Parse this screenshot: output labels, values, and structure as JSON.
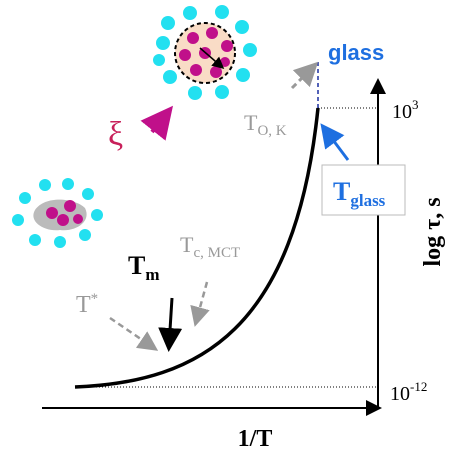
{
  "axes": {
    "x_label": "1/T",
    "y_label": "log τ, s",
    "y_top": {
      "base": "10",
      "exp": "3"
    },
    "y_bottom": {
      "base": "10",
      "exp": "-12"
    }
  },
  "labels": {
    "glass": "glass",
    "xi": "ξ",
    "t_ok": {
      "main": "T",
      "sub": "O, K"
    },
    "t_glass": {
      "main": "T",
      "sub": "glass"
    },
    "t_c": {
      "main": "T",
      "sub": "c, MCT"
    },
    "t_m": {
      "main": "T",
      "sub": "m"
    },
    "t_star": {
      "main": "T",
      "sup": "*"
    }
  }
}
